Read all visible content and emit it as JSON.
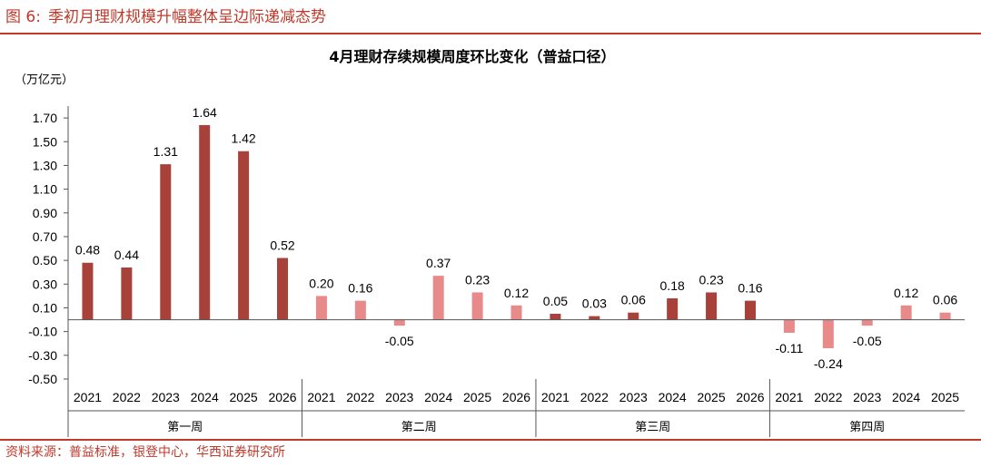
{
  "figure": {
    "label": "图 6:",
    "title": "季初月理财规模升幅整体呈边际递减态势"
  },
  "source": "资料来源：普益标准，银登中心，华西证券研究所",
  "colors": {
    "accent": "#c0392b",
    "dark_bar": "#a8413a",
    "light_bar": "#e8898a",
    "axis": "#555555"
  },
  "chart_data": {
    "type": "bar",
    "title": "4月理财存续规模周度环比变化（普益口径）",
    "unit_label": "（万亿元）",
    "ylim": [
      -0.5,
      1.8
    ],
    "yticks": [
      1.7,
      1.5,
      1.3,
      1.1,
      0.9,
      0.7,
      0.5,
      0.3,
      0.1,
      -0.1,
      -0.3,
      -0.5
    ],
    "grid": false,
    "legend": "none",
    "groups": [
      {
        "name": "第一周",
        "style": "dark",
        "categories": [
          "2021",
          "2022",
          "2023",
          "2024",
          "2025",
          "2026"
        ],
        "values": [
          0.48,
          0.44,
          1.31,
          1.64,
          1.42,
          0.52
        ],
        "labels": [
          "0.48",
          "0.44",
          "1.31",
          "1.64",
          "1.42",
          "0.52"
        ]
      },
      {
        "name": "第二周",
        "style": "light",
        "categories": [
          "2021",
          "2022",
          "2023",
          "2024",
          "2025",
          "2026"
        ],
        "values": [
          0.2,
          0.16,
          -0.05,
          0.37,
          0.23,
          0.12
        ],
        "labels": [
          "0.20",
          "0.16",
          "-0.05",
          "0.37",
          "0.23",
          "0.12"
        ]
      },
      {
        "name": "第三周",
        "style": "dark",
        "categories": [
          "2021",
          "2022",
          "2023",
          "2024",
          "2025",
          "2026"
        ],
        "values": [
          0.05,
          0.03,
          0.06,
          0.18,
          0.23,
          0.16
        ],
        "labels": [
          "0.05",
          "0.03",
          "0.06",
          "0.18",
          "0.23",
          "0.16"
        ]
      },
      {
        "name": "第四周",
        "style": "light",
        "categories": [
          "2021",
          "2022",
          "2023",
          "2024",
          "2025"
        ],
        "values": [
          -0.11,
          -0.24,
          -0.05,
          0.12,
          0.06
        ],
        "labels": [
          "-0.11",
          "-0.24",
          "-0.05",
          "0.12",
          "0.06"
        ]
      }
    ]
  }
}
